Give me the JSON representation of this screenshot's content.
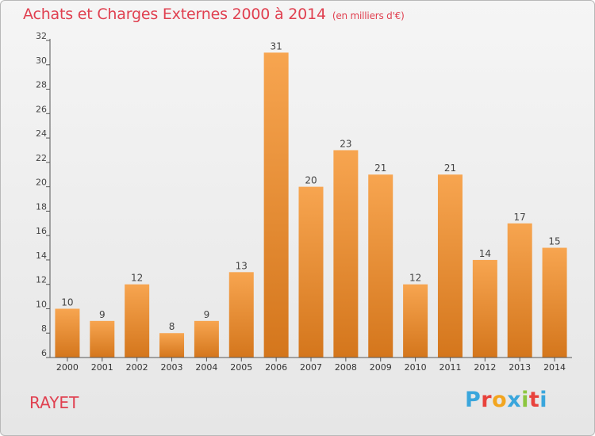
{
  "header": {
    "title": "Achats et Charges Externes 2000 à 2014",
    "unit": "(en milliers d'€)"
  },
  "footer": {
    "commune": "RAYET",
    "brand_letters": [
      "P",
      "r",
      "o",
      "x",
      "i",
      "t",
      "i"
    ],
    "brand_colors": [
      "#3aa6dc",
      "#e8423c",
      "#f2a51f",
      "#3aa6dc",
      "#8cc63f",
      "#e8423c",
      "#3aa6dc"
    ]
  },
  "colors": {
    "bar_top": "#f7a550",
    "bar_bottom": "#d4761c",
    "title": "#e04050"
  },
  "chart_data": {
    "type": "bar",
    "title": "Achats et Charges Externes 2000 à 2014",
    "xlabel": "",
    "ylabel": "",
    "categories": [
      "2000",
      "2001",
      "2002",
      "2003",
      "2004",
      "2005",
      "2006",
      "2007",
      "2008",
      "2009",
      "2010",
      "2011",
      "2012",
      "2013",
      "2014"
    ],
    "values": [
      10,
      9,
      12,
      8,
      9,
      13,
      31,
      20,
      23,
      21,
      12,
      21,
      14,
      17,
      15
    ],
    "data_labels": [
      "10",
      "9",
      "12",
      "8",
      "9",
      "13",
      "31",
      "20",
      "23",
      "21",
      "12",
      "21",
      "14",
      "17",
      "15"
    ],
    "ylim": [
      6,
      32
    ],
    "yticks": [
      "6",
      "8",
      "10",
      "12",
      "14",
      "16",
      "18",
      "20",
      "22",
      "24",
      "26",
      "28",
      "30",
      "32"
    ],
    "grid": false,
    "legend": "none"
  }
}
